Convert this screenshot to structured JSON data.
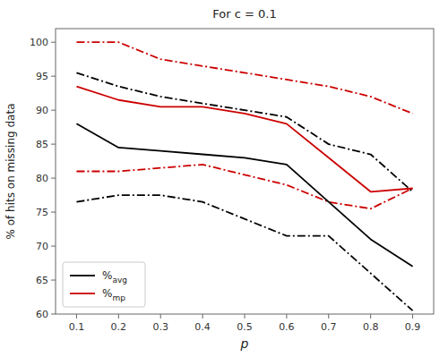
{
  "chart_data": {
    "type": "line",
    "title": "For c = 0.1",
    "xlabel": "p",
    "ylabel": "% of hits on missing data",
    "x": [
      0.1,
      0.2,
      0.3,
      0.4,
      0.5,
      0.6,
      0.7,
      0.8,
      0.9
    ],
    "series": [
      {
        "color": "#000000",
        "line_style": "dashdot",
        "values": [
          95.5,
          93.5,
          92.0,
          91.0,
          90.0,
          89.0,
          85.0,
          83.5,
          78.0
        ]
      },
      {
        "color": "#000000",
        "line_style": "dashdot",
        "values": [
          76.5,
          77.5,
          77.5,
          76.5,
          74.0,
          71.5,
          71.5,
          66.0,
          60.5
        ]
      },
      {
        "color": "#cc0000",
        "line_style": "dashdot",
        "values": [
          100.0,
          100.0,
          97.5,
          96.5,
          95.5,
          94.5,
          93.5,
          92.0,
          89.5
        ]
      },
      {
        "color": "#cc0000",
        "line_style": "dashdot",
        "values": [
          81.0,
          81.0,
          81.5,
          82.0,
          80.5,
          79.0,
          76.5,
          75.5,
          78.5
        ]
      },
      {
        "name": "%avg",
        "color": "#000000",
        "line_style": "solid",
        "values": [
          88.0,
          84.5,
          84.0,
          83.5,
          83.0,
          82.0,
          76.5,
          71.0,
          67.0
        ]
      },
      {
        "name": "%mp",
        "color": "#cc0000",
        "line_style": "solid",
        "values": [
          93.5,
          91.5,
          90.5,
          90.5,
          89.5,
          88.0,
          83.0,
          78.0,
          78.5
        ]
      }
    ],
    "xlim": [
      0.05,
      0.95
    ],
    "ylim": [
      60,
      102
    ],
    "xticks": [
      0.1,
      0.2,
      0.3,
      0.4,
      0.5,
      0.6,
      0.7,
      0.8,
      0.9
    ],
    "yticks": [
      60,
      65,
      70,
      75,
      80,
      85,
      90,
      95,
      100
    ],
    "grid": false,
    "legend": "lower left"
  }
}
